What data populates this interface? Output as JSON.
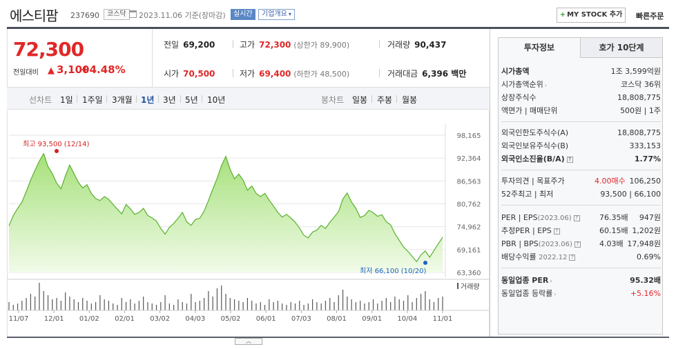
{
  "header": {
    "company_name": "에스티팜",
    "code": "237690",
    "market": "코스닥",
    "date_note": "2023.11.06 기준(장마감)",
    "realtime": "실시간",
    "company_info": "기업개요",
    "mystock": "MY STOCK 추가",
    "quick_order": "빠른주문"
  },
  "price": {
    "current": "72,300",
    "change_label": "전일대비",
    "change_value": "3,100",
    "change_pct": "+4.48%"
  },
  "stats": {
    "prev_label": "전일",
    "prev": "69,200",
    "high_label": "고가",
    "high": "72,300",
    "upper_limit": "(상한가 89,900)",
    "volume_label": "거래량",
    "volume": "90,437",
    "open_label": "시가",
    "open": "70,500",
    "low_label": "저가",
    "low": "69,400",
    "lower_limit": "(하한가 48,500)",
    "amount_label": "거래대금",
    "amount": "6,396 백만"
  },
  "period": {
    "line_label": "선차트",
    "options": [
      "1일",
      "1주일",
      "3개월",
      "1년",
      "3년",
      "5년",
      "10년"
    ],
    "active": "1년",
    "candle_label": "봉차트",
    "candle_options": [
      "일봉",
      "주봉",
      "월봉"
    ]
  },
  "chart_data": {
    "type": "area",
    "y_ticks": [
      "98,165",
      "92,364",
      "86,563",
      "80,762",
      "74,962",
      "69,161",
      "63,360"
    ],
    "ylim": [
      63360,
      98165
    ],
    "x_ticks": [
      "11/07",
      "12/01",
      "01/02",
      "02/01",
      "03/02",
      "04/03",
      "05/02",
      "06/01",
      "07/03",
      "08/01",
      "09/01",
      "10/04",
      "11/01"
    ],
    "high_label": "최고 93,500 (12/14)",
    "low_label": "최저 66,100 (10/20)",
    "volume_label": "거래량",
    "price_series": [
      75200,
      77800,
      79600,
      81200,
      83900,
      86800,
      89300,
      91600,
      93500,
      90200,
      88400,
      86000,
      84600,
      87800,
      90600,
      88400,
      86200,
      84800,
      85600,
      83400,
      82100,
      81600,
      82600,
      81900,
      80600,
      79400,
      78200,
      80600,
      79500,
      78100,
      78600,
      79600,
      77800,
      77200,
      76400,
      74500,
      73100,
      74800,
      75800,
      77100,
      78600,
      76200,
      75300,
      76800,
      77100,
      78900,
      81600,
      84500,
      87200,
      90400,
      92800,
      89500,
      87100,
      88300,
      86800,
      84200,
      85300,
      83400,
      82600,
      83400,
      81700,
      80200,
      78600,
      77400,
      78100,
      77200,
      76100,
      74600,
      72800,
      72100,
      73600,
      74100,
      75300,
      74500,
      76100,
      77400,
      78800,
      82000,
      83500,
      81200,
      79600,
      77300,
      77800,
      79100,
      78500,
      77600,
      78000,
      76200,
      75500,
      73200,
      71500,
      69800,
      68700,
      67400,
      66100,
      67800,
      68800,
      67200,
      68900,
      70600,
      72300
    ],
    "volume_series": [
      6,
      4,
      5,
      7,
      9,
      12,
      10,
      20,
      14,
      11,
      8,
      9,
      7,
      13,
      10,
      8,
      6,
      9,
      7,
      5,
      6,
      11,
      8,
      7,
      5,
      4,
      9,
      6,
      8,
      5,
      7,
      10,
      6,
      5,
      4,
      6,
      11,
      5,
      4,
      8,
      6,
      5,
      12,
      6,
      7,
      9,
      14,
      10,
      16,
      18,
      12,
      9,
      8,
      7,
      6,
      9,
      7,
      5,
      6,
      4,
      8,
      6,
      7,
      5,
      4,
      6,
      5,
      7,
      4,
      5,
      8,
      6,
      5,
      7,
      9,
      6,
      11,
      15,
      10,
      8,
      6,
      7,
      5,
      6,
      8,
      5,
      7,
      9,
      6,
      10,
      8,
      7,
      11,
      6,
      9,
      12,
      14,
      8,
      6,
      9,
      10
    ]
  },
  "side": {
    "tab_invest": "투자정보",
    "tab_quote": "호가 10단계",
    "market_cap_label": "시가총액",
    "market_cap": "1조 3,599억원",
    "market_cap_rank_label": "시가총액순위",
    "market_cap_rank": "코스닥 36위",
    "listed_shares_label": "상장주식수",
    "listed_shares": "18,808,775",
    "par_label": "액면가 | 매매단위",
    "par": "500원 | 1주",
    "foreign_limit_label": "외국인한도주식수(A)",
    "foreign_limit": "18,808,775",
    "foreign_hold_label": "외국인보유주식수(B)",
    "foreign_hold": "333,153",
    "foreign_ratio_label": "외국인소진율(B/A)",
    "foreign_ratio": "1.77%",
    "opinion_label": "투자의견 | 목표주가",
    "opinion": "4.00매수",
    "target": "106,250",
    "week52_label": "52주최고 | 최저",
    "week52": "93,500 | 66,100",
    "per_label": "PER | EPS",
    "per_year": "(2023.06)",
    "per": "76.35배",
    "eps": "947원",
    "est_label": "추정PER | EPS",
    "est_per": "60.15배",
    "est_eps": "1,202원",
    "pbr_label": "PBR | BPS",
    "pbr_year": "(2023.06)",
    "pbr": "4.03배",
    "bps": "17,948원",
    "div_label": "배당수익률",
    "div_year": "2022.12",
    "div": "0.69%",
    "sector_per_label": "동일업종 PER",
    "sector_per": "95.32배",
    "sector_chg_label": "동일업종 등락률",
    "sector_chg": "+5.16%"
  }
}
